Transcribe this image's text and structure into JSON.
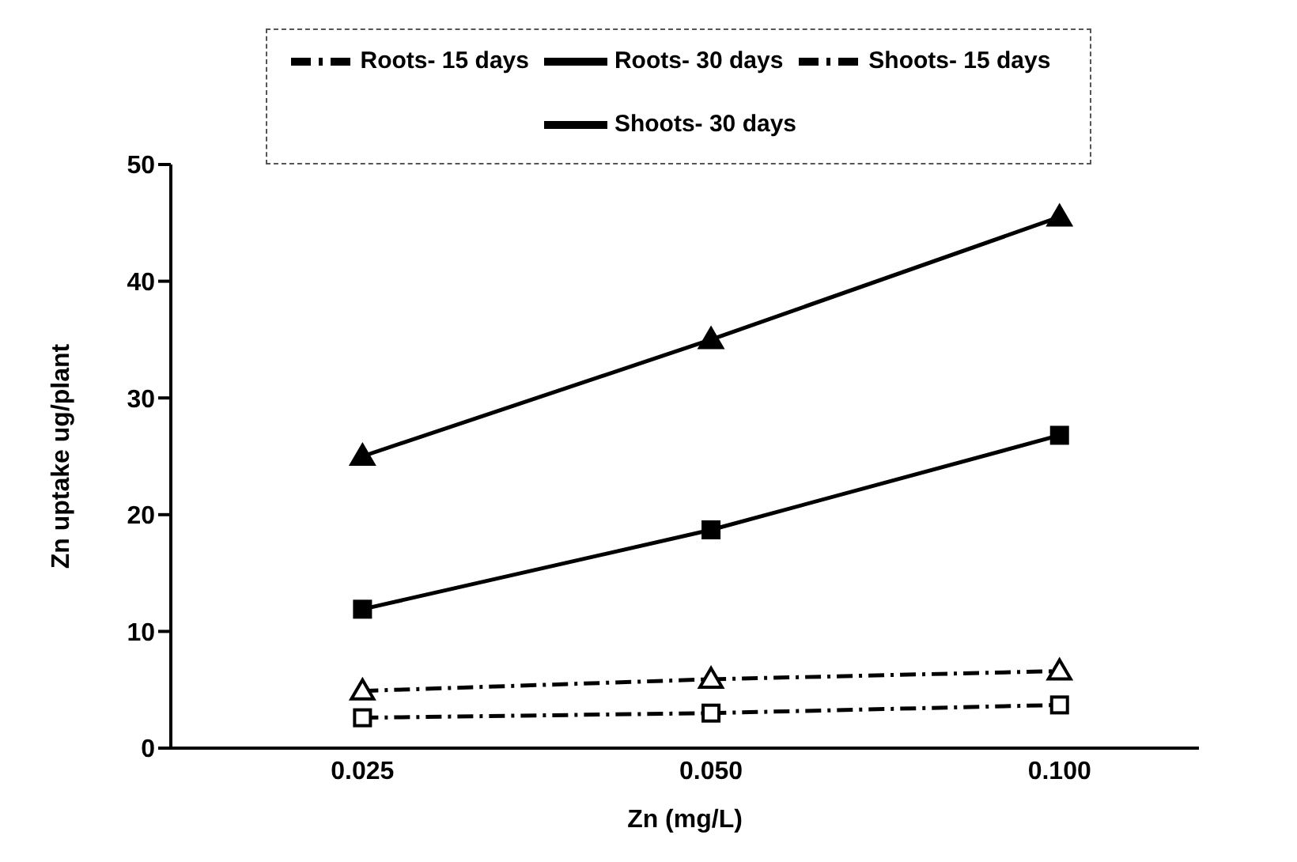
{
  "chart_data": {
    "type": "line",
    "xlabel": "Zn (mg/L)",
    "ylabel": "Zn uptake ug/plant",
    "categories": [
      "0.025",
      "0.050",
      "0.100"
    ],
    "ylim": [
      0,
      50
    ],
    "yticks": [
      0,
      10,
      20,
      30,
      40,
      50
    ],
    "grid": false,
    "legend": "top",
    "series": [
      {
        "name": "Shoots- 15 days",
        "color": "#000000",
        "values": [
          4.9,
          5.9,
          6.6
        ],
        "marker": "triangle",
        "line_style": "dashed"
      },
      {
        "name": "Roots- 15 days",
        "color": "#000000",
        "values": [
          2.6,
          3.0,
          3.7
        ],
        "marker": "square",
        "line_style": "dashed"
      },
      {
        "name": "Shoots- 30 days",
        "color": "#000000",
        "values": [
          25,
          35,
          45.5
        ],
        "marker": "triangle",
        "line_style": "solid"
      },
      {
        "name": "Roots- 30 days",
        "color": "#000000",
        "values": [
          11.9,
          18.7,
          26.8
        ],
        "marker": "square",
        "line_style": "solid"
      }
    ]
  }
}
